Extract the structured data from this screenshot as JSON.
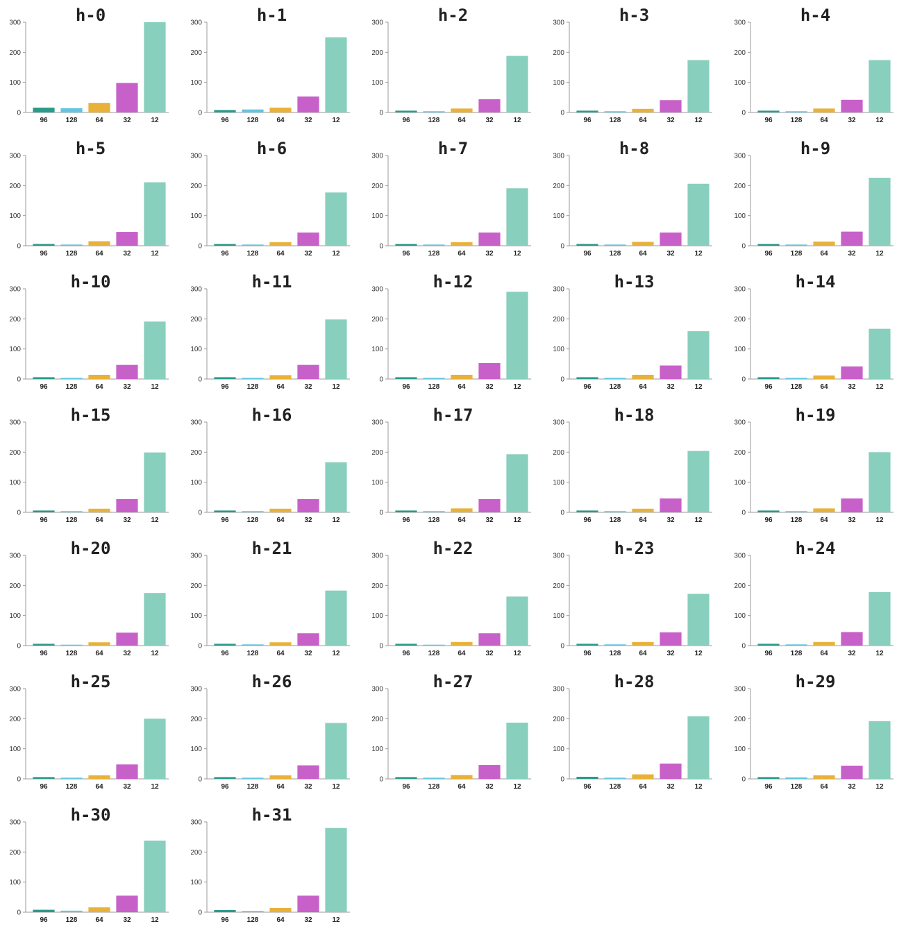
{
  "colors": {
    "96": "#2a9a8a",
    "128": "#64c5e0",
    "64": "#e8b23a",
    "32": "#c761c9",
    "12": "#88cfbd",
    "axis": "#999999"
  },
  "chart_data": [
    {
      "type": "bar",
      "title": "h-0",
      "categories": [
        "96",
        "128",
        "64",
        "32",
        "12"
      ],
      "values": [
        16,
        14,
        32,
        98,
        300
      ],
      "ylim": [
        0,
        300
      ],
      "yticks": [
        0,
        100,
        200,
        300
      ]
    },
    {
      "type": "bar",
      "title": "h-1",
      "categories": [
        "96",
        "128",
        "64",
        "32",
        "12"
      ],
      "values": [
        8,
        10,
        16,
        53,
        250
      ],
      "ylim": [
        0,
        300
      ],
      "yticks": [
        0,
        100,
        200,
        300
      ]
    },
    {
      "type": "bar",
      "title": "h-2",
      "categories": [
        "96",
        "128",
        "64",
        "32",
        "12"
      ],
      "values": [
        6,
        4,
        13,
        44,
        188
      ],
      "ylim": [
        0,
        300
      ],
      "yticks": [
        0,
        100,
        200,
        300
      ]
    },
    {
      "type": "bar",
      "title": "h-3",
      "categories": [
        "96",
        "128",
        "64",
        "32",
        "12"
      ],
      "values": [
        6,
        4,
        12,
        41,
        174
      ],
      "ylim": [
        0,
        300
      ],
      "yticks": [
        0,
        100,
        200,
        300
      ]
    },
    {
      "type": "bar",
      "title": "h-4",
      "categories": [
        "96",
        "128",
        "64",
        "32",
        "12"
      ],
      "values": [
        6,
        4,
        13,
        42,
        174
      ],
      "ylim": [
        0,
        300
      ],
      "yticks": [
        0,
        100,
        200,
        300
      ]
    },
    {
      "type": "bar",
      "title": "h-5",
      "categories": [
        "96",
        "128",
        "64",
        "32",
        "12"
      ],
      "values": [
        6,
        4,
        15,
        46,
        211
      ],
      "ylim": [
        0,
        300
      ],
      "yticks": [
        0,
        100,
        200,
        300
      ]
    },
    {
      "type": "bar",
      "title": "h-6",
      "categories": [
        "96",
        "128",
        "64",
        "32",
        "12"
      ],
      "values": [
        6,
        4,
        12,
        44,
        177
      ],
      "ylim": [
        0,
        300
      ],
      "yticks": [
        0,
        100,
        200,
        300
      ]
    },
    {
      "type": "bar",
      "title": "h-7",
      "categories": [
        "96",
        "128",
        "64",
        "32",
        "12"
      ],
      "values": [
        6,
        4,
        12,
        44,
        191
      ],
      "ylim": [
        0,
        300
      ],
      "yticks": [
        0,
        100,
        200,
        300
      ]
    },
    {
      "type": "bar",
      "title": "h-8",
      "categories": [
        "96",
        "128",
        "64",
        "32",
        "12"
      ],
      "values": [
        6,
        4,
        13,
        44,
        206
      ],
      "ylim": [
        0,
        300
      ],
      "yticks": [
        0,
        100,
        200,
        300
      ]
    },
    {
      "type": "bar",
      "title": "h-9",
      "categories": [
        "96",
        "128",
        "64",
        "32",
        "12"
      ],
      "values": [
        6,
        4,
        14,
        47,
        226
      ],
      "ylim": [
        0,
        300
      ],
      "yticks": [
        0,
        100,
        200,
        300
      ]
    },
    {
      "type": "bar",
      "title": "h-10",
      "categories": [
        "96",
        "128",
        "64",
        "32",
        "12"
      ],
      "values": [
        6,
        4,
        14,
        47,
        191
      ],
      "ylim": [
        0,
        300
      ],
      "yticks": [
        0,
        100,
        200,
        300
      ]
    },
    {
      "type": "bar",
      "title": "h-11",
      "categories": [
        "96",
        "128",
        "64",
        "32",
        "12"
      ],
      "values": [
        6,
        4,
        13,
        47,
        198
      ],
      "ylim": [
        0,
        300
      ],
      "yticks": [
        0,
        100,
        200,
        300
      ]
    },
    {
      "type": "bar",
      "title": "h-12",
      "categories": [
        "96",
        "128",
        "64",
        "32",
        "12"
      ],
      "values": [
        6,
        4,
        14,
        53,
        290
      ],
      "ylim": [
        0,
        300
      ],
      "yticks": [
        0,
        100,
        200,
        300
      ]
    },
    {
      "type": "bar",
      "title": "h-13",
      "categories": [
        "96",
        "128",
        "64",
        "32",
        "12"
      ],
      "values": [
        6,
        4,
        14,
        45,
        159
      ],
      "ylim": [
        0,
        300
      ],
      "yticks": [
        0,
        100,
        200,
        300
      ]
    },
    {
      "type": "bar",
      "title": "h-14",
      "categories": [
        "96",
        "128",
        "64",
        "32",
        "12"
      ],
      "values": [
        6,
        4,
        12,
        42,
        167
      ],
      "ylim": [
        0,
        300
      ],
      "yticks": [
        0,
        100,
        200,
        300
      ]
    },
    {
      "type": "bar",
      "title": "h-15",
      "categories": [
        "96",
        "128",
        "64",
        "32",
        "12"
      ],
      "values": [
        6,
        4,
        12,
        44,
        199
      ],
      "ylim": [
        0,
        300
      ],
      "yticks": [
        0,
        100,
        200,
        300
      ]
    },
    {
      "type": "bar",
      "title": "h-16",
      "categories": [
        "96",
        "128",
        "64",
        "32",
        "12"
      ],
      "values": [
        6,
        4,
        12,
        44,
        166
      ],
      "ylim": [
        0,
        300
      ],
      "yticks": [
        0,
        100,
        200,
        300
      ]
    },
    {
      "type": "bar",
      "title": "h-17",
      "categories": [
        "96",
        "128",
        "64",
        "32",
        "12"
      ],
      "values": [
        6,
        4,
        13,
        44,
        193
      ],
      "ylim": [
        0,
        300
      ],
      "yticks": [
        0,
        100,
        200,
        300
      ]
    },
    {
      "type": "bar",
      "title": "h-18",
      "categories": [
        "96",
        "128",
        "64",
        "32",
        "12"
      ],
      "values": [
        6,
        4,
        12,
        46,
        204
      ],
      "ylim": [
        0,
        300
      ],
      "yticks": [
        0,
        100,
        200,
        300
      ]
    },
    {
      "type": "bar",
      "title": "h-19",
      "categories": [
        "96",
        "128",
        "64",
        "32",
        "12"
      ],
      "values": [
        6,
        4,
        13,
        46,
        200
      ],
      "ylim": [
        0,
        300
      ],
      "yticks": [
        0,
        100,
        200,
        300
      ]
    },
    {
      "type": "bar",
      "title": "h-20",
      "categories": [
        "96",
        "128",
        "64",
        "32",
        "12"
      ],
      "values": [
        6,
        3,
        11,
        43,
        175
      ],
      "ylim": [
        0,
        300
      ],
      "yticks": [
        0,
        100,
        200,
        300
      ]
    },
    {
      "type": "bar",
      "title": "h-21",
      "categories": [
        "96",
        "128",
        "64",
        "32",
        "12"
      ],
      "values": [
        6,
        4,
        11,
        41,
        183
      ],
      "ylim": [
        0,
        300
      ],
      "yticks": [
        0,
        100,
        200,
        300
      ]
    },
    {
      "type": "bar",
      "title": "h-22",
      "categories": [
        "96",
        "128",
        "64",
        "32",
        "12"
      ],
      "values": [
        6,
        3,
        12,
        41,
        163
      ],
      "ylim": [
        0,
        300
      ],
      "yticks": [
        0,
        100,
        200,
        300
      ]
    },
    {
      "type": "bar",
      "title": "h-23",
      "categories": [
        "96",
        "128",
        "64",
        "32",
        "12"
      ],
      "values": [
        6,
        4,
        12,
        44,
        172
      ],
      "ylim": [
        0,
        300
      ],
      "yticks": [
        0,
        100,
        200,
        300
      ]
    },
    {
      "type": "bar",
      "title": "h-24",
      "categories": [
        "96",
        "128",
        "64",
        "32",
        "12"
      ],
      "values": [
        6,
        4,
        12,
        45,
        178
      ],
      "ylim": [
        0,
        300
      ],
      "yticks": [
        0,
        100,
        200,
        300
      ]
    },
    {
      "type": "bar",
      "title": "h-25",
      "categories": [
        "96",
        "128",
        "64",
        "32",
        "12"
      ],
      "values": [
        6,
        4,
        12,
        48,
        200
      ],
      "ylim": [
        0,
        300
      ],
      "yticks": [
        0,
        100,
        200,
        300
      ]
    },
    {
      "type": "bar",
      "title": "h-26",
      "categories": [
        "96",
        "128",
        "64",
        "32",
        "12"
      ],
      "values": [
        6,
        4,
        12,
        45,
        186
      ],
      "ylim": [
        0,
        300
      ],
      "yticks": [
        0,
        100,
        200,
        300
      ]
    },
    {
      "type": "bar",
      "title": "h-27",
      "categories": [
        "96",
        "128",
        "64",
        "32",
        "12"
      ],
      "values": [
        6,
        4,
        13,
        46,
        187
      ],
      "ylim": [
        0,
        300
      ],
      "yticks": [
        0,
        100,
        200,
        300
      ]
    },
    {
      "type": "bar",
      "title": "h-28",
      "categories": [
        "96",
        "128",
        "64",
        "32",
        "12"
      ],
      "values": [
        7,
        4,
        15,
        51,
        208
      ],
      "ylim": [
        0,
        300
      ],
      "yticks": [
        0,
        100,
        200,
        300
      ]
    },
    {
      "type": "bar",
      "title": "h-29",
      "categories": [
        "96",
        "128",
        "64",
        "32",
        "12"
      ],
      "values": [
        6,
        5,
        12,
        44,
        192
      ],
      "ylim": [
        0,
        300
      ],
      "yticks": [
        0,
        100,
        200,
        300
      ]
    },
    {
      "type": "bar",
      "title": "h-30",
      "categories": [
        "96",
        "128",
        "64",
        "32",
        "12"
      ],
      "values": [
        8,
        5,
        16,
        55,
        238
      ],
      "ylim": [
        0,
        300
      ],
      "yticks": [
        0,
        100,
        200,
        300
      ]
    },
    {
      "type": "bar",
      "title": "h-31",
      "categories": [
        "96",
        "128",
        "64",
        "32",
        "12"
      ],
      "values": [
        7,
        4,
        14,
        55,
        280
      ],
      "ylim": [
        0,
        300
      ],
      "yticks": [
        0,
        100,
        200,
        300
      ]
    }
  ]
}
